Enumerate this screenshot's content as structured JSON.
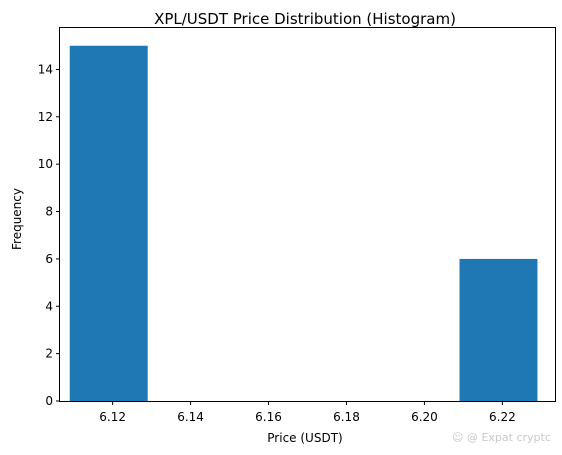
{
  "chart_data": {
    "type": "bar",
    "title": "XPL/USDT Price Distribution (Histogram)",
    "xlabel": "Price (USDT)",
    "ylabel": "Frequency",
    "xlim": [
      6.1065,
      6.2335
    ],
    "ylim": [
      0,
      15.75
    ],
    "xticks": [
      6.12,
      6.14,
      6.16,
      6.18,
      6.2,
      6.22
    ],
    "xtick_labels": [
      "6.12",
      "6.14",
      "6.16",
      "6.18",
      "6.20",
      "6.22"
    ],
    "yticks": [
      0,
      2,
      4,
      6,
      8,
      10,
      12,
      14
    ],
    "ytick_labels": [
      "0",
      "2",
      "4",
      "6",
      "8",
      "10",
      "12",
      "14"
    ],
    "bins": [
      {
        "x0": 6.109,
        "x1": 6.129,
        "count": 15
      },
      {
        "x0": 6.129,
        "x1": 6.149,
        "count": 0
      },
      {
        "x0": 6.149,
        "x1": 6.169,
        "count": 0
      },
      {
        "x0": 6.169,
        "x1": 6.189,
        "count": 0
      },
      {
        "x0": 6.189,
        "x1": 6.209,
        "count": 0
      },
      {
        "x0": 6.209,
        "x1": 6.229,
        "count": 6
      }
    ],
    "grid": false,
    "bar_color": "#1f77b4"
  },
  "watermark": "☺ @ Expat cryptc"
}
